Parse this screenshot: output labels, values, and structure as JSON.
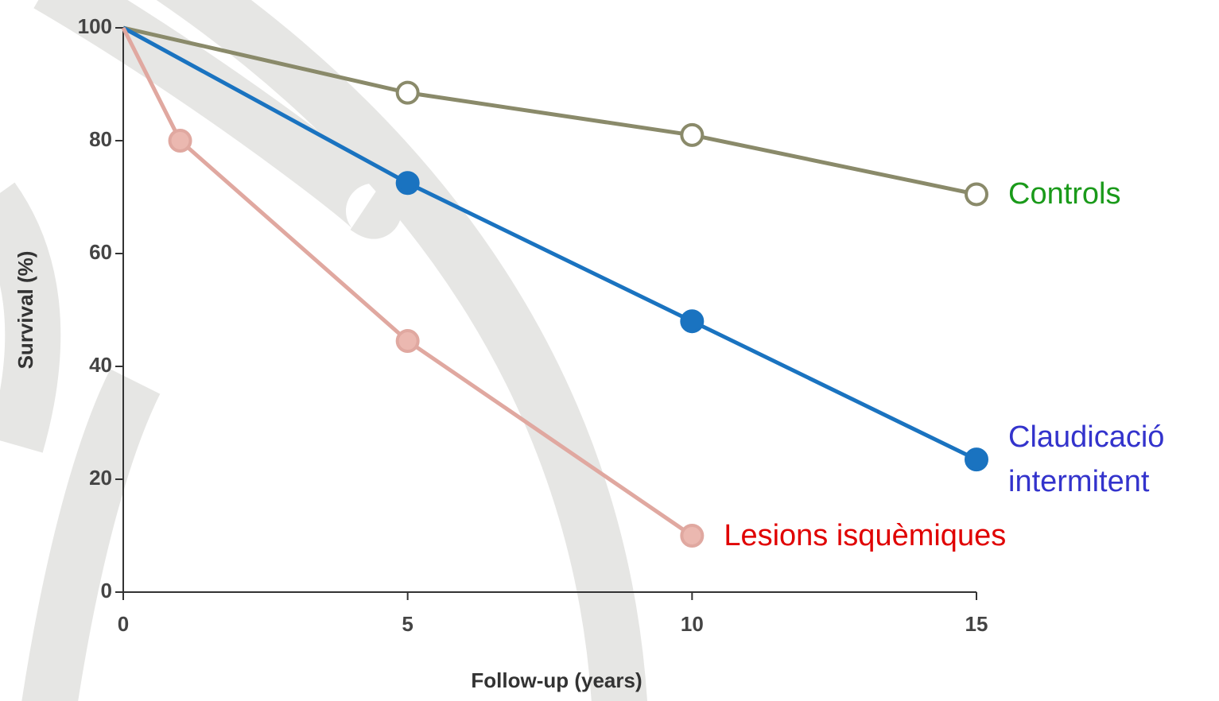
{
  "chart_data": {
    "type": "line",
    "xlabel": "Follow-up (years)",
    "ylabel": "Survival (%)",
    "xlim": [
      0,
      15
    ],
    "xticks": [
      0,
      5,
      10,
      15
    ],
    "ylim": [
      0,
      100
    ],
    "yticks": [
      0,
      20,
      40,
      60,
      80,
      100
    ],
    "grid": false,
    "series": [
      {
        "name": "Controls",
        "color": "#8a8a6a",
        "marker_fill": "#ffffff",
        "label_color": "#1a9a1a",
        "x": [
          0,
          5,
          10,
          15
        ],
        "values": [
          100,
          88.5,
          81,
          70.5
        ]
      },
      {
        "name": "Claudicació intermitent",
        "color": "#1a73c0",
        "marker_fill": "#1a73c0",
        "label_color": "#3333cc",
        "x": [
          0,
          5,
          10,
          15
        ],
        "values": [
          100,
          72.5,
          48,
          23.5
        ]
      },
      {
        "name": "Lesions isquèmiques",
        "color": "#e0a8a0",
        "marker_fill": "#ebb8b0",
        "label_color": "#e00000",
        "x": [
          0,
          1,
          5,
          10
        ],
        "values": [
          100,
          80,
          44.5,
          10
        ]
      }
    ]
  }
}
